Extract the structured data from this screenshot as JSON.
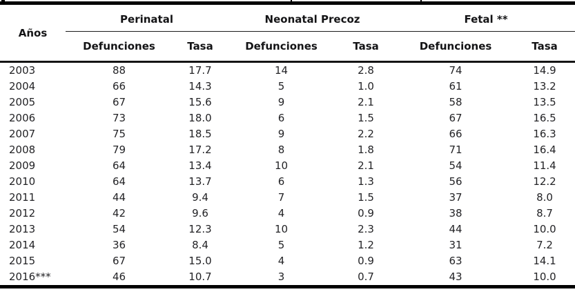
{
  "table": {
    "year_header": "Años",
    "groups": [
      {
        "label": "Perinatal",
        "columns": [
          "Defunciones",
          "Tasa"
        ]
      },
      {
        "label": "Neonatal Precoz",
        "columns": [
          "Defunciones",
          "Tasa"
        ]
      },
      {
        "label": "Fetal **",
        "columns": [
          "Defunciones",
          "Tasa"
        ]
      }
    ],
    "rows": [
      {
        "year": "2003",
        "values": [
          "88",
          "17.7",
          "14",
          "2.8",
          "74",
          "14.9"
        ]
      },
      {
        "year": "2004",
        "values": [
          "66",
          "14.3",
          "5",
          "1.0",
          "61",
          "13.2"
        ]
      },
      {
        "year": "2005",
        "values": [
          "67",
          "15.6",
          "9",
          "2.1",
          "58",
          "13.5"
        ]
      },
      {
        "year": "2006",
        "values": [
          "73",
          "18.0",
          "6",
          "1.5",
          "67",
          "16.5"
        ]
      },
      {
        "year": "2007",
        "values": [
          "75",
          "18.5",
          "9",
          "2.2",
          "66",
          "16.3"
        ]
      },
      {
        "year": "2008",
        "values": [
          "79",
          "17.2",
          "8",
          "1.8",
          "71",
          "16.4"
        ]
      },
      {
        "year": "2009",
        "values": [
          "64",
          "13.4",
          "10",
          "2.1",
          "54",
          "11.4"
        ]
      },
      {
        "year": "2010",
        "values": [
          "64",
          "13.7",
          "6",
          "1.3",
          "56",
          "12.2"
        ]
      },
      {
        "year": "2011",
        "values": [
          "44",
          "9.4",
          "7",
          "1.5",
          "37",
          "8.0"
        ]
      },
      {
        "year": "2012",
        "values": [
          "42",
          "9.6",
          "4",
          "0.9",
          "38",
          "8.7"
        ]
      },
      {
        "year": "2013",
        "values": [
          "54",
          "12.3",
          "10",
          "2.3",
          "44",
          "10.0"
        ]
      },
      {
        "year": "2014",
        "values": [
          "36",
          "8.4",
          "5",
          "1.2",
          "31",
          "7.2"
        ]
      },
      {
        "year": "2015",
        "values": [
          "67",
          "15.0",
          "4",
          "0.9",
          "63",
          "14.1"
        ]
      },
      {
        "year": "2016***",
        "values": [
          "46",
          "10.7",
          "3",
          "0.7",
          "43",
          "10.0"
        ]
      }
    ]
  },
  "colors": {
    "text": "#1c1c1e",
    "rule": "#000000",
    "background": "#ffffff"
  },
  "chart_data": {
    "type": "table",
    "title": "",
    "column_groups": [
      "Perinatal",
      "Neonatal Precoz",
      "Fetal **"
    ],
    "columns": [
      "Años",
      "Perinatal Defunciones",
      "Perinatal Tasa",
      "Neonatal Precoz Defunciones",
      "Neonatal Precoz Tasa",
      "Fetal Defunciones",
      "Fetal Tasa"
    ],
    "rows": [
      [
        "2003",
        88,
        17.7,
        14,
        2.8,
        74,
        14.9
      ],
      [
        "2004",
        66,
        14.3,
        5,
        1.0,
        61,
        13.2
      ],
      [
        "2005",
        67,
        15.6,
        9,
        2.1,
        58,
        13.5
      ],
      [
        "2006",
        73,
        18.0,
        6,
        1.5,
        67,
        16.5
      ],
      [
        "2007",
        75,
        18.5,
        9,
        2.2,
        66,
        16.3
      ],
      [
        "2008",
        79,
        17.2,
        8,
        1.8,
        71,
        16.4
      ],
      [
        "2009",
        64,
        13.4,
        10,
        2.1,
        54,
        11.4
      ],
      [
        "2010",
        64,
        13.7,
        6,
        1.3,
        56,
        12.2
      ],
      [
        "2011",
        44,
        9.4,
        7,
        1.5,
        37,
        8.0
      ],
      [
        "2012",
        42,
        9.6,
        4,
        0.9,
        38,
        8.7
      ],
      [
        "2013",
        54,
        12.3,
        10,
        2.3,
        44,
        10.0
      ],
      [
        "2014",
        36,
        8.4,
        5,
        1.2,
        31,
        7.2
      ],
      [
        "2015",
        67,
        15.0,
        4,
        0.9,
        63,
        14.1
      ],
      [
        "2016***",
        46,
        10.7,
        3,
        0.7,
        43,
        10.0
      ]
    ]
  }
}
